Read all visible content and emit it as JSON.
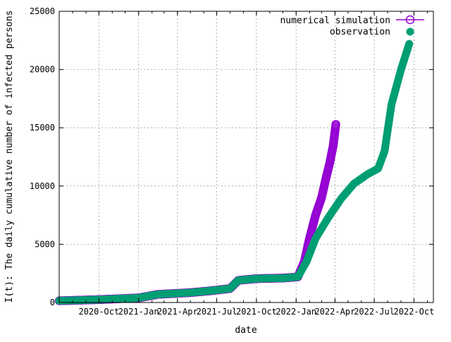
{
  "chart_data": {
    "type": "scatter",
    "title": "",
    "xlabel": "date",
    "ylabel": "I(t): The daily cumulative number of infected persons",
    "xlim": [
      "2020-07-01",
      "2022-11-15"
    ],
    "ylim": [
      0,
      25000
    ],
    "x_ticks": [
      "2020-Oct",
      "2021-Jan",
      "2021-Apr",
      "2021-Jul",
      "2021-Oct",
      "2022-Jan",
      "2022-Apr",
      "2022-Jul",
      "2022-Oct"
    ],
    "x_tick_dates": [
      "2020-10-01",
      "2021-01-01",
      "2021-04-01",
      "2021-07-01",
      "2021-10-01",
      "2022-01-01",
      "2022-04-01",
      "2022-07-01",
      "2022-10-01"
    ],
    "y_ticks": [
      0,
      5000,
      10000,
      15000,
      20000,
      25000
    ],
    "grid": true,
    "legend_position": "top-right",
    "series": [
      {
        "name": "numerical simulation",
        "marker": "open-circle",
        "color": "#9400d3",
        "x": [
          "2020-07-01",
          "2020-10-01",
          "2021-01-01",
          "2021-02-15",
          "2021-05-01",
          "2021-06-15",
          "2021-08-01",
          "2021-08-20",
          "2021-10-01",
          "2021-12-01",
          "2022-01-05",
          "2022-01-20",
          "2022-02-01",
          "2022-02-15",
          "2022-03-01",
          "2022-03-10",
          "2022-03-20",
          "2022-03-28",
          "2022-04-03"
        ],
        "y": [
          150,
          250,
          400,
          700,
          850,
          1000,
          1200,
          1900,
          2050,
          2100,
          2200,
          3500,
          5500,
          7500,
          9000,
          10500,
          12000,
          13500,
          15300
        ]
      },
      {
        "name": "observation",
        "marker": "filled-circle",
        "color": "#009e73",
        "x": [
          "2020-07-01",
          "2020-10-01",
          "2021-01-01",
          "2021-02-15",
          "2021-05-01",
          "2021-06-15",
          "2021-08-01",
          "2021-08-20",
          "2021-10-01",
          "2021-12-01",
          "2022-01-05",
          "2022-01-25",
          "2022-02-15",
          "2022-03-15",
          "2022-04-15",
          "2022-05-15",
          "2022-06-15",
          "2022-07-10",
          "2022-07-25",
          "2022-08-10",
          "2022-09-01",
          "2022-09-20"
        ],
        "y": [
          150,
          250,
          400,
          700,
          850,
          1000,
          1200,
          1900,
          2050,
          2100,
          2200,
          3500,
          5500,
          7200,
          8900,
          10200,
          11000,
          11500,
          13000,
          17000,
          20000,
          22200
        ]
      }
    ]
  }
}
